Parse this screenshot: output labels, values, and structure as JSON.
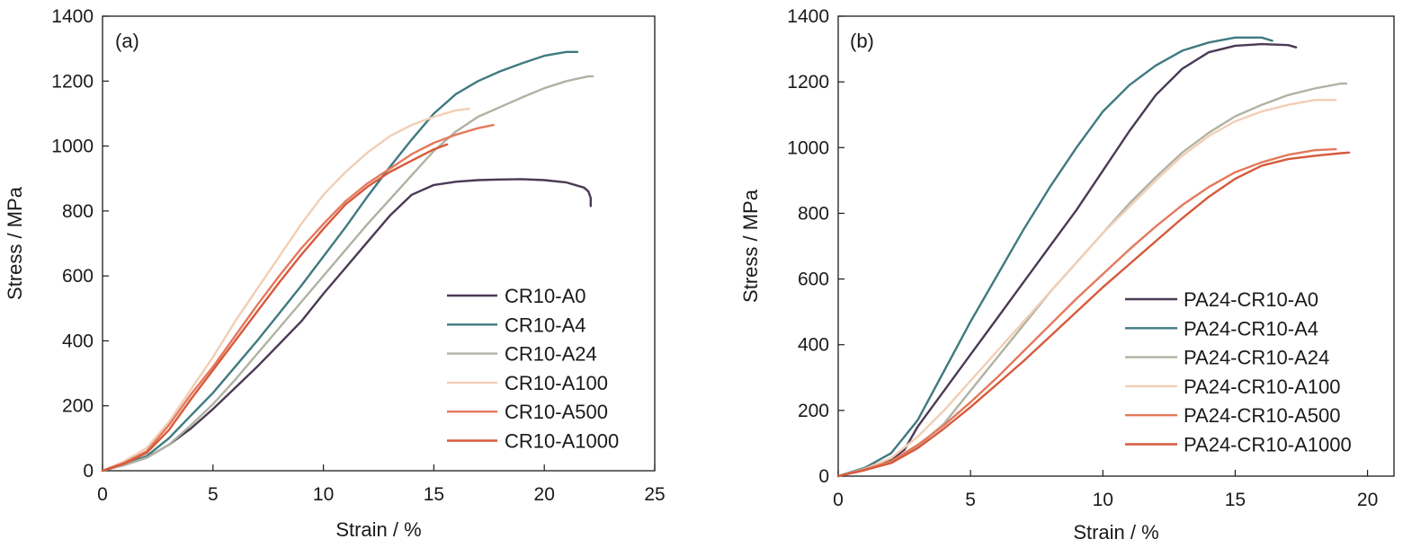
{
  "chart_data": [
    {
      "type": "line",
      "panel_label": "(a)",
      "xlabel": "Strain / %",
      "ylabel": "Stress / MPa",
      "xlim": [
        0,
        25
      ],
      "ylim": [
        0,
        1400
      ],
      "xticks": [
        "0",
        "5",
        "10",
        "15",
        "20",
        "25"
      ],
      "yticks": [
        "0",
        "200",
        "400",
        "600",
        "800",
        "1000",
        "1200",
        "1400"
      ],
      "legend_position": "bottom-right",
      "series": [
        {
          "name": "CR10-A0",
          "color": "#4a3a55",
          "x": [
            0,
            1,
            2,
            3,
            4,
            5,
            6,
            7,
            8,
            9,
            10,
            11,
            12,
            13,
            14,
            15,
            16,
            17,
            18,
            19,
            20,
            21,
            21.8,
            22,
            22.1,
            22.1
          ],
          "y": [
            0,
            18,
            40,
            80,
            130,
            190,
            255,
            320,
            390,
            460,
            545,
            625,
            705,
            785,
            850,
            880,
            890,
            895,
            897,
            898,
            895,
            888,
            872,
            860,
            840,
            815
          ]
        },
        {
          "name": "CR10-A4",
          "color": "#3f7a80",
          "x": [
            0,
            1,
            2,
            3,
            4,
            5,
            6,
            7,
            8,
            9,
            10,
            11,
            12,
            13,
            14,
            15,
            16,
            17,
            18,
            19,
            20,
            21,
            21.5
          ],
          "y": [
            0,
            20,
            45,
            100,
            170,
            240,
            320,
            400,
            485,
            570,
            660,
            750,
            845,
            935,
            1020,
            1100,
            1160,
            1200,
            1230,
            1255,
            1278,
            1290,
            1290
          ]
        },
        {
          "name": "CR10-A24",
          "color": "#b0b2a2",
          "x": [
            0,
            1,
            2,
            3,
            4,
            5,
            6,
            7,
            8,
            9,
            10,
            11,
            12,
            13,
            14,
            15,
            16,
            17,
            18,
            19,
            20,
            21,
            22,
            22.2
          ],
          "y": [
            0,
            18,
            40,
            80,
            140,
            205,
            280,
            360,
            440,
            520,
            600,
            680,
            760,
            835,
            910,
            985,
            1045,
            1090,
            1120,
            1150,
            1178,
            1200,
            1215,
            1215
          ]
        },
        {
          "name": "CR10-A100",
          "color": "#f2ceb5",
          "x": [
            0,
            1,
            2,
            3,
            4,
            5,
            6,
            7,
            8,
            9,
            10,
            11,
            12,
            13,
            14,
            15,
            16,
            16.6
          ],
          "y": [
            0,
            30,
            70,
            150,
            250,
            350,
            460,
            560,
            660,
            760,
            850,
            920,
            980,
            1030,
            1065,
            1090,
            1110,
            1115
          ]
        },
        {
          "name": "CR10-A500",
          "color": "#e4795c",
          "x": [
            0,
            1,
            2,
            3,
            4,
            5,
            6,
            7,
            8,
            9,
            10,
            11,
            12,
            13,
            14,
            15,
            16,
            17,
            17.7
          ],
          "y": [
            0,
            25,
            60,
            140,
            235,
            320,
            415,
            510,
            600,
            685,
            760,
            830,
            885,
            930,
            975,
            1010,
            1035,
            1055,
            1065
          ]
        },
        {
          "name": "CR10-A1000",
          "color": "#d65a3c",
          "x": [
            0,
            1,
            2,
            3,
            4,
            5,
            6,
            7,
            8,
            9,
            10,
            11,
            12,
            13,
            14,
            15,
            15.6
          ],
          "y": [
            0,
            22,
            55,
            125,
            220,
            310,
            400,
            490,
            580,
            665,
            745,
            820,
            875,
            920,
            955,
            990,
            1005
          ]
        }
      ]
    },
    {
      "type": "line",
      "panel_label": "(b)",
      "xlabel": "Strain / %",
      "ylabel": "Stress / MPa",
      "xlim": [
        0,
        21
      ],
      "ylim": [
        0,
        1400
      ],
      "xticks": [
        "0",
        "5",
        "10",
        "15",
        "20"
      ],
      "yticks": [
        "0",
        "200",
        "400",
        "600",
        "800",
        "1000",
        "1200",
        "1400"
      ],
      "legend_position": "bottom-right",
      "series": [
        {
          "name": "PA24-CR10-A0",
          "color": "#4a3a55",
          "x": [
            0,
            1,
            2,
            2.5,
            3,
            4,
            5,
            6,
            7,
            8,
            9,
            10,
            11,
            12,
            13,
            14,
            15,
            16,
            17,
            17.3
          ],
          "y": [
            0,
            25,
            50,
            80,
            150,
            260,
            370,
            480,
            590,
            700,
            810,
            930,
            1050,
            1160,
            1240,
            1290,
            1310,
            1315,
            1312,
            1305
          ]
        },
        {
          "name": "PA24-CR10-A4",
          "color": "#3f7a80",
          "x": [
            0,
            1,
            2,
            3,
            4,
            5,
            6,
            7,
            8,
            9,
            10,
            11,
            12,
            13,
            14,
            15,
            16,
            16.4
          ],
          "y": [
            0,
            25,
            70,
            170,
            320,
            470,
            610,
            750,
            880,
            1000,
            1110,
            1190,
            1250,
            1295,
            1320,
            1335,
            1335,
            1325
          ]
        },
        {
          "name": "PA24-CR10-A24",
          "color": "#b0b2a2",
          "x": [
            0,
            1,
            2,
            3,
            4,
            5,
            6,
            7,
            8,
            9,
            10,
            11,
            12,
            13,
            14,
            15,
            16,
            17,
            18,
            19,
            19.2
          ],
          "y": [
            0,
            20,
            45,
            90,
            160,
            260,
            360,
            460,
            560,
            650,
            740,
            830,
            910,
            985,
            1045,
            1095,
            1130,
            1160,
            1180,
            1195,
            1195
          ]
        },
        {
          "name": "PA24-CR10-A100",
          "color": "#f2ceb5",
          "x": [
            0,
            1,
            2,
            3,
            4,
            5,
            6,
            7,
            8,
            9,
            10,
            11,
            12,
            13,
            14,
            15,
            16,
            17,
            18,
            18.8
          ],
          "y": [
            0,
            22,
            55,
            120,
            200,
            290,
            380,
            470,
            560,
            650,
            740,
            820,
            900,
            975,
            1035,
            1080,
            1110,
            1130,
            1145,
            1145
          ]
        },
        {
          "name": "PA24-CR10-A500",
          "color": "#e4795c",
          "x": [
            0,
            1,
            2,
            3,
            4,
            5,
            6,
            7,
            8,
            9,
            10,
            11,
            12,
            13,
            14,
            15,
            16,
            17,
            18,
            18.8
          ],
          "y": [
            0,
            20,
            45,
            95,
            155,
            225,
            300,
            380,
            460,
            540,
            615,
            690,
            760,
            825,
            880,
            925,
            955,
            978,
            992,
            995
          ]
        },
        {
          "name": "PA24-CR10-A1000",
          "color": "#d65a3c",
          "x": [
            0,
            1,
            2,
            3,
            4,
            5,
            6,
            7,
            8,
            9,
            10,
            11,
            12,
            13,
            14,
            15,
            16,
            17,
            18,
            19,
            19.3
          ],
          "y": [
            0,
            18,
            40,
            85,
            145,
            210,
            280,
            350,
            425,
            500,
            575,
            645,
            715,
            785,
            850,
            905,
            945,
            965,
            975,
            983,
            985
          ]
        }
      ]
    }
  ]
}
